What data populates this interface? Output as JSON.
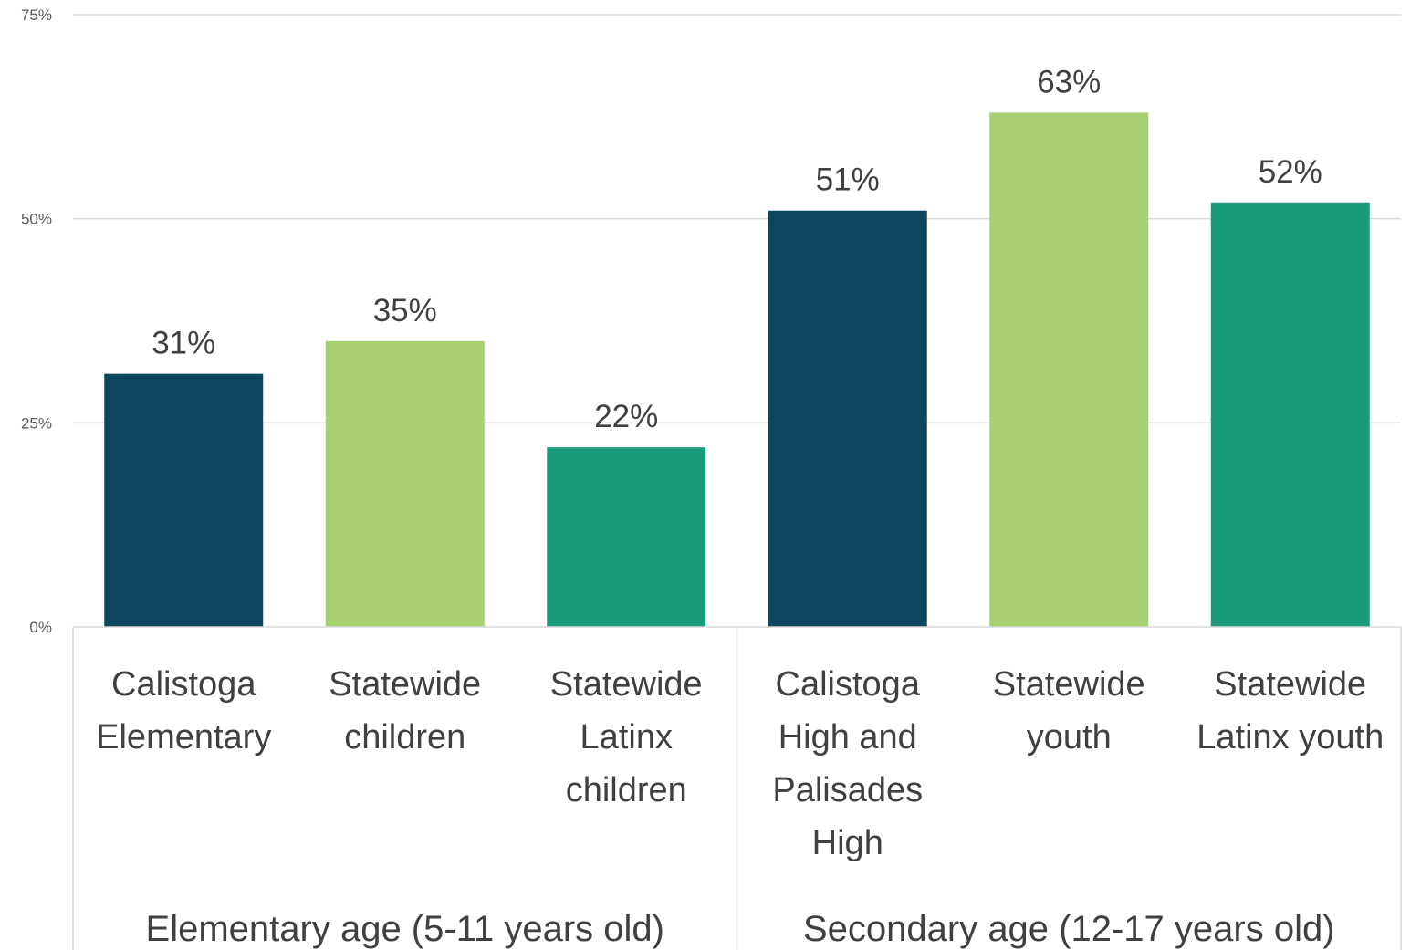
{
  "chart_data": {
    "type": "bar",
    "ylim": [
      0,
      75
    ],
    "yticks": [
      "0%",
      "25%",
      "50%",
      "75%"
    ],
    "grid": true,
    "legend": "none",
    "categories": [
      "Calistoga Elementary",
      "Statewide children",
      "Statewide Latinx children",
      "Calistoga High and Palisades High",
      "Statewide youth",
      "Statewide Latinx youth"
    ],
    "category_lines": [
      [
        "Calistoga",
        "Elementary"
      ],
      [
        "Statewide",
        "children"
      ],
      [
        "Statewide",
        "Latinx",
        "children"
      ],
      [
        "Calistoga",
        "High and",
        "Palisades",
        "High"
      ],
      [
        "Statewide",
        "youth"
      ],
      [
        "Statewide",
        "Latinx youth"
      ]
    ],
    "values": [
      31,
      35,
      22,
      51,
      63,
      52
    ],
    "data_labels": [
      "31%",
      "35%",
      "22%",
      "51%",
      "63%",
      "52%"
    ],
    "groups": [
      {
        "label": "Elementary age (5-11 years old)",
        "categories": [
          0,
          1,
          2
        ]
      },
      {
        "label": "Secondary age (12-17 years old)",
        "categories": [
          3,
          4,
          5
        ]
      }
    ],
    "colors": [
      "#0e4660",
      "#a9cf73",
      "#179b79",
      "#0e4660",
      "#a9cf73",
      "#179b79"
    ]
  }
}
